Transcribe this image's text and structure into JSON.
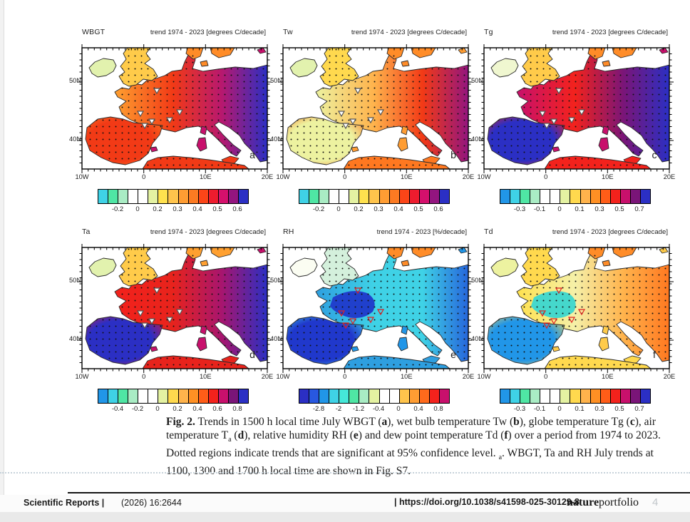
{
  "figure": {
    "axes": {
      "y": [
        "50N",
        "40N"
      ],
      "x": [
        "10W",
        "0",
        "10E",
        "20E"
      ]
    },
    "panels": [
      {
        "variable": "WBGT",
        "trend_label": "trend 1974 - 2023 [degrees C/decade]",
        "letter": "a",
        "colorbar": {
          "colors": [
            "#3FD2E6",
            "#4FE6A4",
            "#A9ECC4",
            "#FFFFFF",
            "#FFFFFF",
            "#E4F2A2",
            "#FFE14E",
            "#FFC44C",
            "#FF9D33",
            "#FC7A22",
            "#FB4518",
            "#ED1C2E",
            "#D5106C",
            "#93157F",
            "#2B2FC4"
          ],
          "ticks": [
            "-0.2",
            "0",
            "0.2",
            "0.3",
            "0.4",
            "0.5",
            "0.6"
          ]
        },
        "map": {
          "ireland": "#E2F2AE",
          "britain": "#FFCB4A",
          "scandinavia": "#FF8C28",
          "mainland": [
            "#FFA030",
            "#F23A16",
            "#B8186E",
            "#2B2FC4"
          ],
          "iberia_edge": "#FC7A22",
          "iberia_center": "#F23A16",
          "africa": "#F23A16",
          "islands": "#C8106C",
          "patch": "none",
          "marker_fill": "#FFFFFF",
          "marker_stroke": "#555555"
        }
      },
      {
        "variable": "Tw",
        "trend_label": "trend 1974 - 2023 [degrees C/decade]",
        "letter": "b",
        "colorbar": {
          "colors": [
            "#3FD2E6",
            "#4FE6A4",
            "#A9ECC4",
            "#FFFFFF",
            "#FFFFFF",
            "#E4F2A2",
            "#FFE14E",
            "#FFC44C",
            "#FF9D33",
            "#FC7A22",
            "#FB4518",
            "#ED1C2E",
            "#D5106C",
            "#93157F",
            "#2B2FC4"
          ],
          "ticks": [
            "-0.2",
            "0",
            "0.2",
            "0.3",
            "0.4",
            "0.5",
            "0.6"
          ]
        },
        "map": {
          "ireland": "#E2F2AE",
          "britain": "#FFD94E",
          "scandinavia": "#FF8C28",
          "mainland": [
            "#EDF2A0",
            "#FFB34C",
            "#F23A16",
            "#93157F"
          ],
          "iberia_edge": "#FC7A22",
          "iberia_center": "#EDF2A0",
          "africa": "#FF7820",
          "islands": "#FF9D33",
          "patch": "none",
          "marker_fill": "#FFFFFF",
          "marker_stroke": "#555555"
        }
      },
      {
        "variable": "Tg",
        "trend_label": "trend 1974 - 2023 [degrees C/decade]",
        "letter": "c",
        "colorbar": {
          "colors": [
            "#2196E8",
            "#3FD2E6",
            "#4FE6A4",
            "#A9ECC4",
            "#FFFFFF",
            "#FFFFFF",
            "#E4F2A2",
            "#FFD94E",
            "#FFB34C",
            "#FF9024",
            "#FF5D18",
            "#F3221C",
            "#C8106C",
            "#7A1578",
            "#2B2FC4"
          ],
          "ticks": [
            "-0.3",
            "-0.1",
            "0",
            "0.1",
            "0.3",
            "0.5",
            "0.7"
          ]
        },
        "map": {
          "ireland": "#F0F7D0",
          "britain": "#FFCB4A",
          "scandinavia": "#FF8C28",
          "mainland": [
            "#C8106C",
            "#F3221C",
            "#7A1578",
            "#2B2FC4"
          ],
          "iberia_edge": "#F3221C",
          "iberia_center": "#2B2FC4",
          "africa": "#F3221C",
          "islands": "#C8106C",
          "patch": "none",
          "marker_fill": "#FFFFFF",
          "marker_stroke": "#555555"
        }
      },
      {
        "variable": "Ta",
        "trend_label": "trend 1974 - 2023 [degrees C/decade]",
        "letter": "d",
        "colorbar": {
          "colors": [
            "#2196E8",
            "#3FD2E6",
            "#4FE6A4",
            "#A9ECC4",
            "#FFFFFF",
            "#FFFFFF",
            "#E4F2A2",
            "#FFD94E",
            "#FFB34C",
            "#FF9024",
            "#FF5D18",
            "#F3221C",
            "#C8106C",
            "#7A1578",
            "#2B2FC4"
          ],
          "ticks": [
            "-0.4",
            "-0.2",
            "0",
            "0.2",
            "0.4",
            "0.6",
            "0.8"
          ]
        },
        "map": {
          "ireland": "#E2F2AE",
          "britain": "#FFCB4A",
          "scandinavia": "#FFA030",
          "mainland": [
            "#F3221C",
            "#E8231C",
            "#A8156E",
            "#2B2FC4"
          ],
          "iberia_edge": "#D81840",
          "iberia_center": "#2B2FC4",
          "africa": "#E8231C",
          "islands": "#C8106C",
          "patch": "none",
          "marker_fill": "#FFFFFF",
          "marker_stroke": "#555555"
        }
      },
      {
        "variable": "RH",
        "trend_label": "trend 1974 - 2023 [%/decade]",
        "letter": "e",
        "colorbar": {
          "colors": [
            "#2B2FC4",
            "#2858E0",
            "#2196E8",
            "#3FD2E6",
            "#45E8D8",
            "#4FE6A4",
            "#A9ECC4",
            "#E4F2A2",
            "#FFFFFF",
            "#FFFFFF",
            "#FFC44C",
            "#FF9D33",
            "#FF6A1C",
            "#F3221C",
            "#C8106C"
          ],
          "ticks": [
            "-2.8",
            "-2",
            "-1.2",
            "-0.4",
            "0",
            "0.4",
            "0.8"
          ]
        },
        "map": {
          "ireland": "#FBFDF2",
          "britain": "#D4F0DC",
          "scandinavia": "#FF8C28",
          "mainland": [
            "#2E9FE0",
            "#3FD2E6",
            "#3FD2E6",
            "#2666DC"
          ],
          "iberia_edge": "#3FD2E6",
          "iberia_center": "#2038CC",
          "africa": "#2E9FE0",
          "islands": "#2196E8",
          "patch": "#2040CC",
          "marker_fill": "none",
          "marker_stroke": "#E02020"
        }
      },
      {
        "variable": "Td",
        "trend_label": "trend 1974 - 2023 [degrees C/decade]",
        "letter": "f",
        "colorbar": {
          "colors": [
            "#2196E8",
            "#3FD2E6",
            "#4FE6A4",
            "#A9ECC4",
            "#FFFFFF",
            "#FFFFFF",
            "#E4F2A2",
            "#FFD94E",
            "#FFB34C",
            "#FF9024",
            "#FF5D18",
            "#F3221C",
            "#C8106C",
            "#7A1578",
            "#2B2FC4"
          ],
          "ticks": [
            "-0.3",
            "-0.1",
            "0",
            "0.1",
            "0.3",
            "0.5",
            "0.7"
          ]
        },
        "map": {
          "ireland": "#EDF2A0",
          "britain": "#FFD94E",
          "scandinavia": "#FF8C28",
          "mainland": [
            "#FFE14E",
            "#F5F0A8",
            "#FFB34C",
            "#FF7820"
          ],
          "iberia_edge": "#FFD94E",
          "iberia_center": "#2196E8",
          "africa": "#FFD94E",
          "islands": "#FFCB4A",
          "patch": "#45D8CC",
          "marker_fill": "none",
          "marker_stroke": "#E02020"
        }
      }
    ],
    "caption": {
      "segments": [
        {
          "text": "Fig. 2.",
          "bold": true
        },
        {
          "text": "  Trends in 1500 h local time July WBGT ("
        },
        {
          "text": "a",
          "bold": true
        },
        {
          "text": "), wet bulb temperature Tw ("
        },
        {
          "text": "b",
          "bold": true
        },
        {
          "text": "), globe temperature Tg ("
        },
        {
          "text": "c",
          "bold": true
        },
        {
          "text": "), air temperature T"
        },
        {
          "text": "a",
          "sub": true
        },
        {
          "text": " ("
        },
        {
          "text": "d",
          "bold": true
        },
        {
          "text": "), relative humidity RH ("
        },
        {
          "text": "e",
          "bold": true
        },
        {
          "text": ") and dew point temperature Td ("
        },
        {
          "text": "f",
          "bold": true
        },
        {
          "text": ") over a period from 1974 to 2023. Dotted regions indicate trends that are significant at 95% confidence level. "
        },
        {
          "text": "a",
          "sub": true
        },
        {
          "text": ". WBGT, Ta and RH July trends at 1100, 1300 and 1700 h local time are shown in Fig. S7."
        }
      ]
    }
  },
  "footer": {
    "journal": "Scientific Reports |",
    "citation": "(2026) 16:2644",
    "doi": "| https://doi.org/10.1038/s41598-025-30129-8",
    "brand_bold": "nature",
    "brand_regular": "portfolio",
    "page_number": "4"
  }
}
